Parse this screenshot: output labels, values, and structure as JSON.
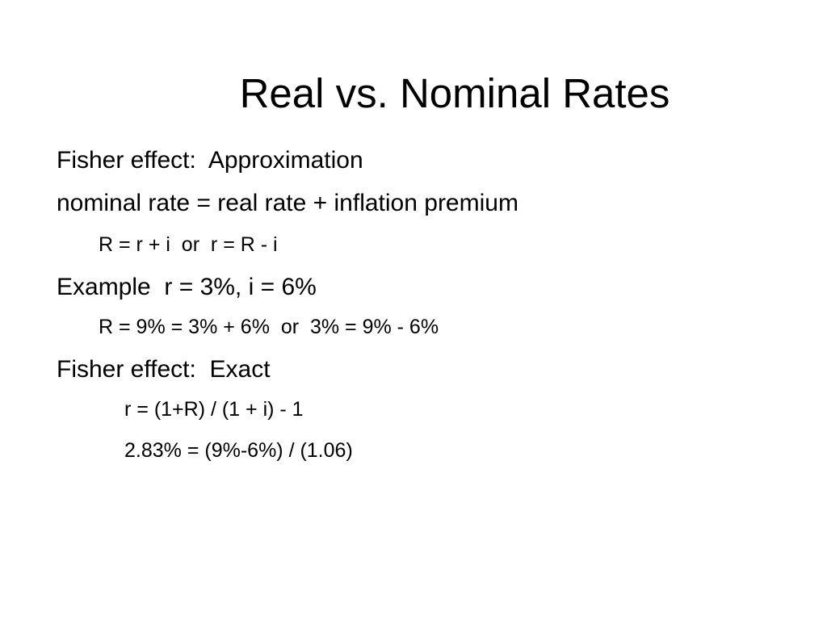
{
  "slide": {
    "title": "Real vs. Nominal Rates",
    "lines": [
      "Fisher effect:  Approximation",
      "nominal rate = real rate + inflation premium",
      "R = r + i  or  r = R - i",
      "Example  r = 3%, i = 6%",
      "R = 9% = 3% + 6%  or  3% = 9% - 6%",
      "Fisher effect:  Exact",
      "r = (1+R) / (1 + i) - 1",
      "2.83% = (9%-6%) / (1.06)"
    ]
  }
}
